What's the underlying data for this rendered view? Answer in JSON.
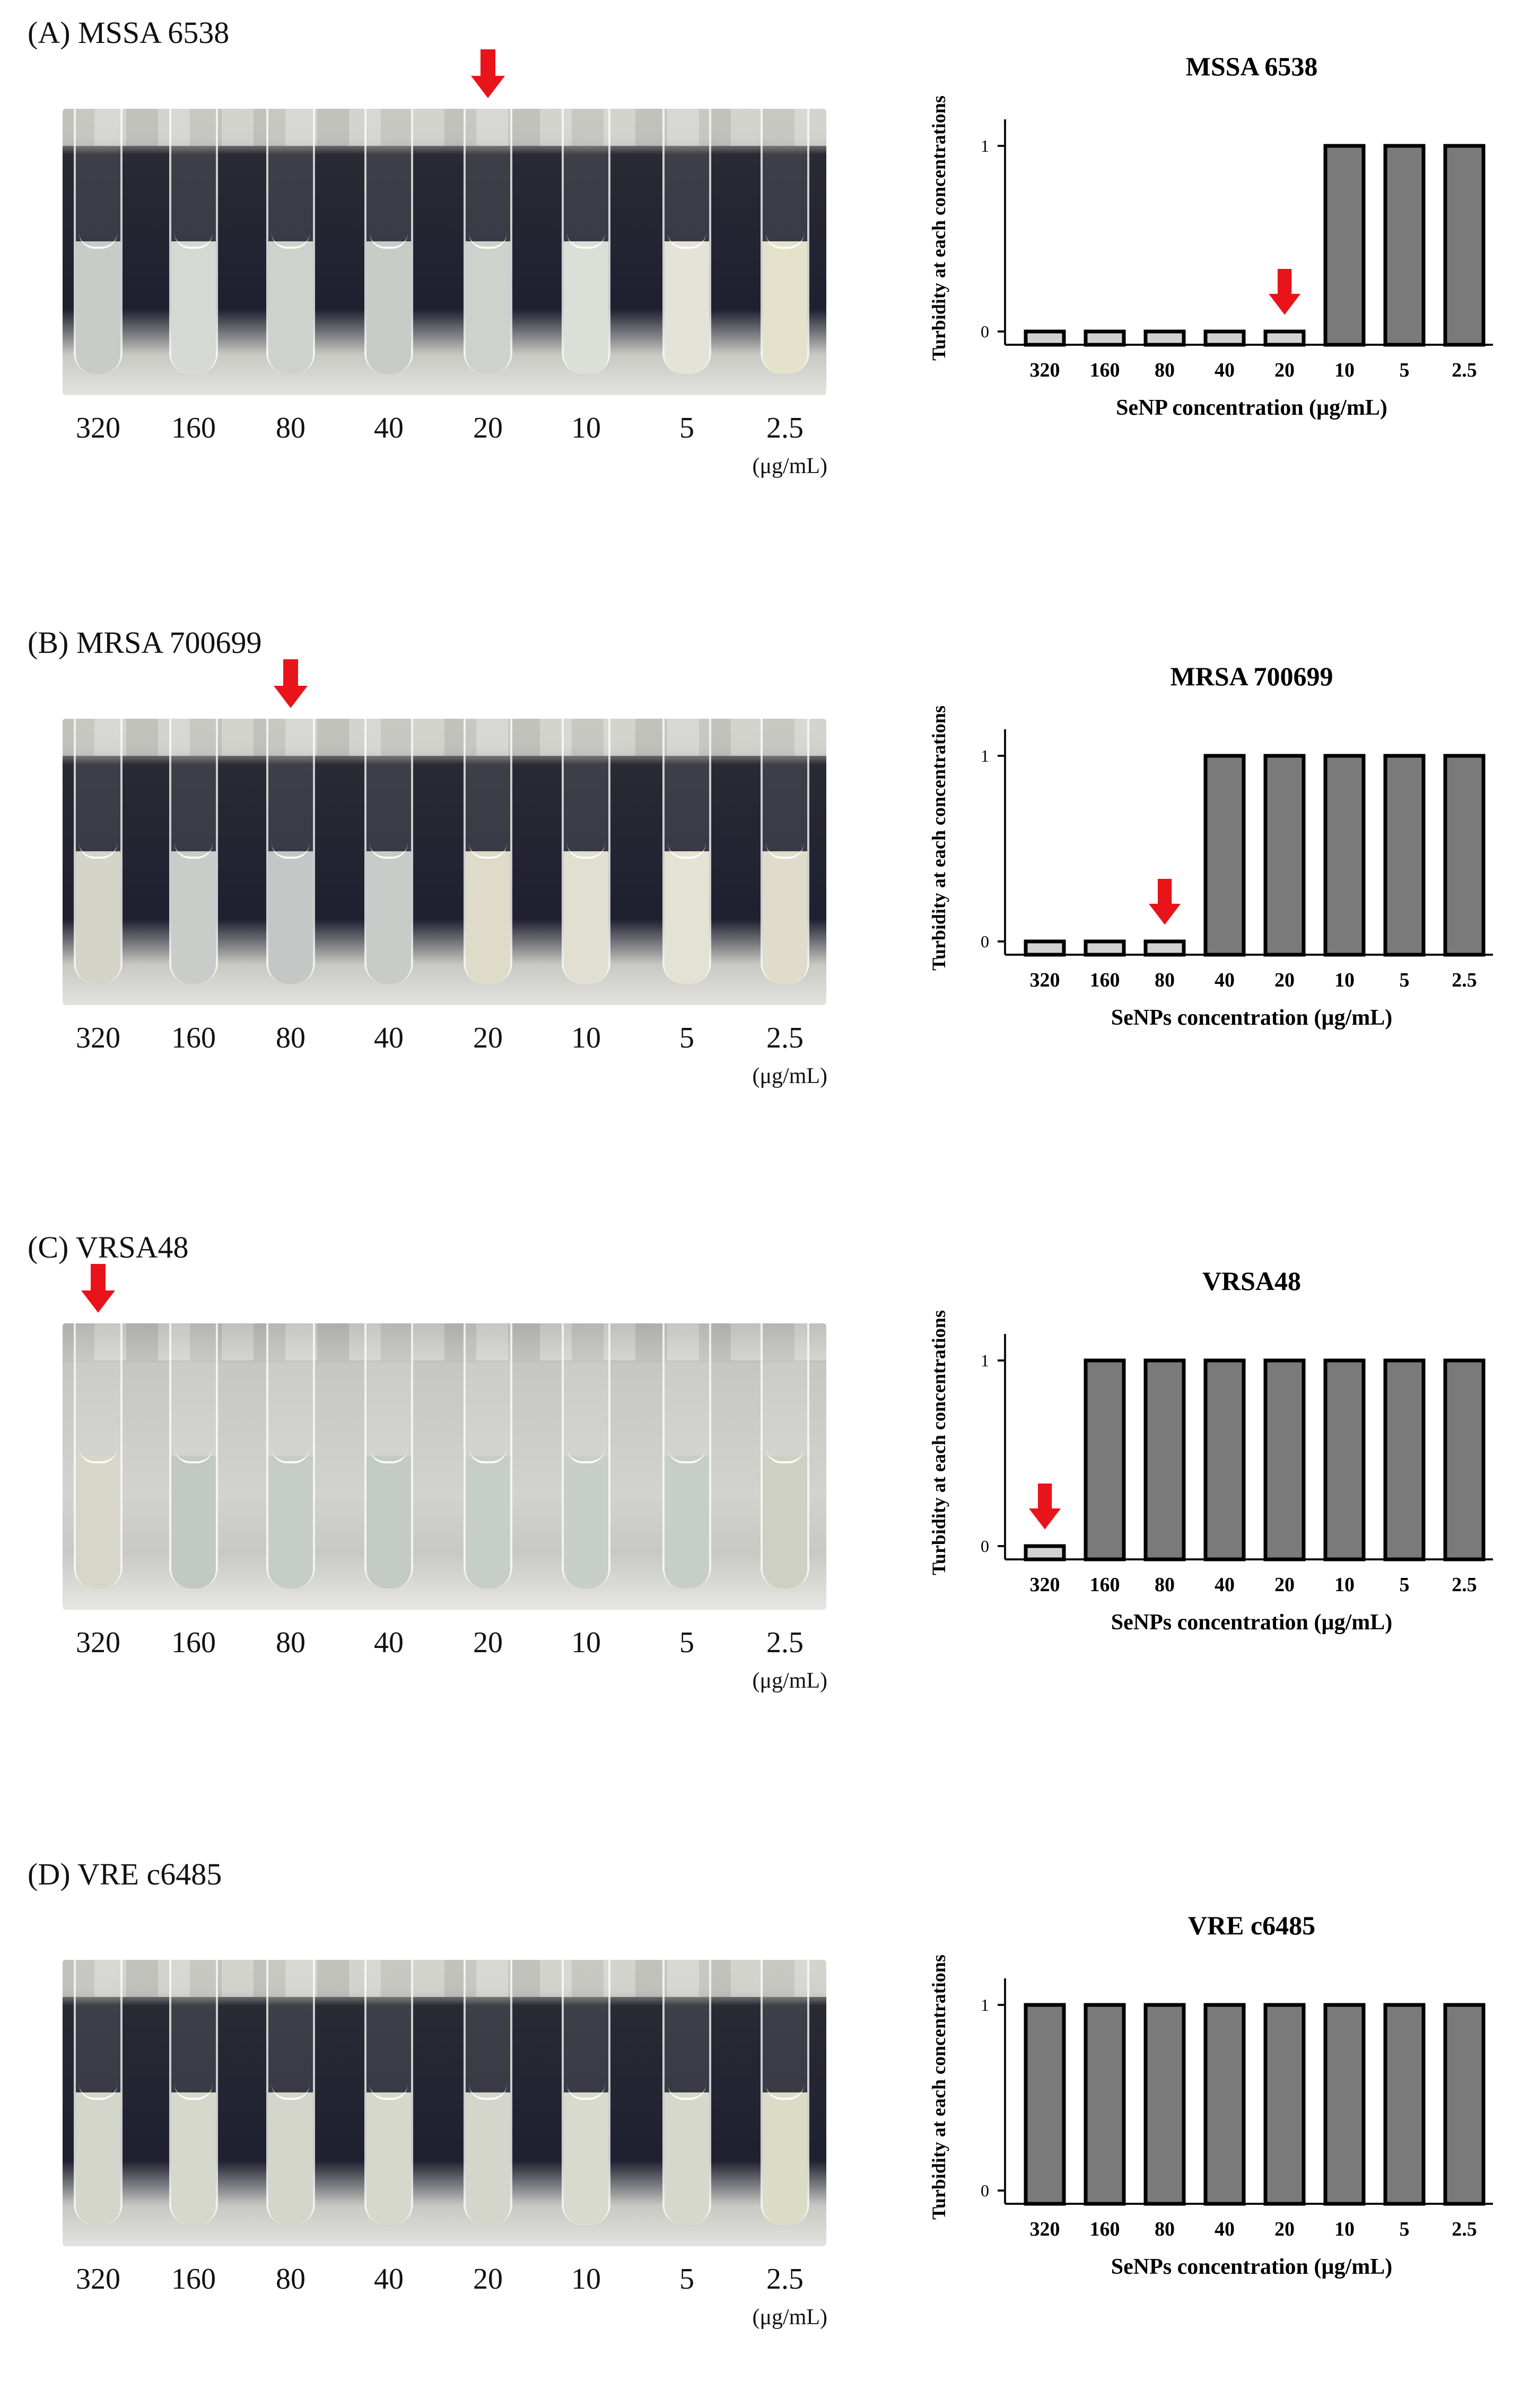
{
  "unit": "(μg/mL)",
  "concentrations": [
    "320",
    "160",
    "80",
    "40",
    "20",
    "10",
    "5",
    "2.5"
  ],
  "colors": {
    "clear_bar": "#d2d2d2",
    "turbid_bar": "#7a7a7a",
    "arrow": "#e8141a"
  },
  "panels": [
    {
      "label": "(A) MSSA 6538",
      "arrow_index": 4,
      "backdrop": "dark",
      "liquid": [
        "#c8cbc6",
        "#d6d8d3",
        "#cfd1cc",
        "#c9cbc6",
        "#cfd1cc",
        "#dcded8",
        "#e3e3d8",
        "#e5e2cc"
      ]
    },
    {
      "label": "(B) MRSA 700699",
      "arrow_index": 2,
      "backdrop": "dark",
      "liquid": [
        "#d4d4c8",
        "#c9ccc9",
        "#c4c7c6",
        "#c8cbc8",
        "#dedbc9",
        "#e1dfd0",
        "#e4e2d2",
        "#dfdccb"
      ]
    },
    {
      "label": "(C) VRSA48",
      "arrow_index": 0,
      "backdrop": "light",
      "liquid": [
        "#d7d6c8",
        "#c2c9c4",
        "#c6ccc6",
        "#c4cbc6",
        "#c7cec9",
        "#c8cec8",
        "#c7cdc7",
        "#cfd0c4"
      ]
    },
    {
      "label": "(D) VRE c6485",
      "arrow_index": -1,
      "backdrop": "dark",
      "liquid": [
        "#d4d6cb",
        "#d6d8cc",
        "#d4d6cb",
        "#d6d8cc",
        "#d4d6cb",
        "#d8dacd",
        "#d6d8cb",
        "#dcdcc6"
      ]
    }
  ],
  "chart_data": [
    {
      "type": "bar",
      "title": "MSSA 6538",
      "xlabel": "SeNP concentration (µg/mL)",
      "ylabel": "Turbidity at each concentrations",
      "categories": [
        "320",
        "160",
        "80",
        "40",
        "20",
        "10",
        "5",
        "2.5"
      ],
      "values": [
        0,
        0,
        0,
        0,
        0,
        1,
        1,
        1
      ],
      "yticks": [
        0,
        1
      ],
      "ylim": [
        0,
        1
      ],
      "arrow_index": 4
    },
    {
      "type": "bar",
      "title": "MRSA 700699",
      "xlabel": "SeNPs concentration (µg/mL)",
      "ylabel": "Turbidity at each concentrations",
      "categories": [
        "320",
        "160",
        "80",
        "40",
        "20",
        "10",
        "5",
        "2.5"
      ],
      "values": [
        0,
        0,
        0,
        1,
        1,
        1,
        1,
        1
      ],
      "yticks": [
        0,
        1
      ],
      "ylim": [
        0,
        1
      ],
      "arrow_index": 2
    },
    {
      "type": "bar",
      "title": "VRSA48",
      "xlabel": "SeNPs concentration (µg/mL)",
      "ylabel": "Turbidity at each concentrations",
      "categories": [
        "320",
        "160",
        "80",
        "40",
        "20",
        "10",
        "5",
        "2.5"
      ],
      "values": [
        0,
        1,
        1,
        1,
        1,
        1,
        1,
        1
      ],
      "yticks": [
        0,
        1
      ],
      "ylim": [
        0,
        1
      ],
      "arrow_index": 0
    },
    {
      "type": "bar",
      "title": "VRE c6485",
      "xlabel": "SeNPs concentration (µg/mL)",
      "ylabel": "Turbidity at each concentrations",
      "categories": [
        "320",
        "160",
        "80",
        "40",
        "20",
        "10",
        "5",
        "2.5"
      ],
      "values": [
        1,
        1,
        1,
        1,
        1,
        1,
        1,
        1
      ],
      "yticks": [
        0,
        1
      ],
      "ylim": [
        0,
        1
      ],
      "arrow_index": -1
    }
  ]
}
